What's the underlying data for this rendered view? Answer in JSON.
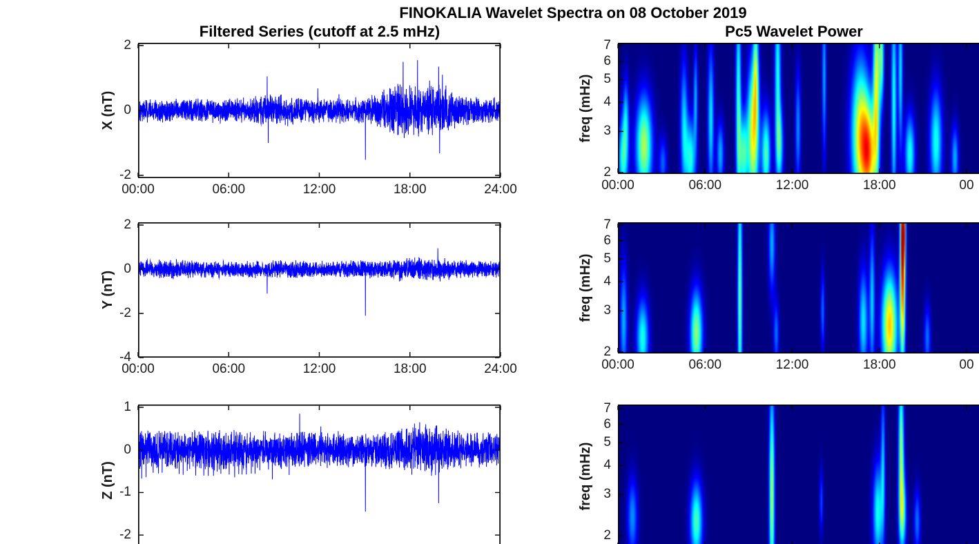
{
  "figure": {
    "title": "FINOKALIA Wavelet Spectra on 08 October 2019",
    "background_color": "#ffffff",
    "axis_color": "#000000",
    "tick_label_color": "#1a1a1a"
  },
  "chart_data": [
    {
      "id": "filtered-series-x",
      "type": "line",
      "title": "Filtered Series (cutoff at 2.5 mHz)",
      "ylabel": "X (nT)",
      "xlabel": "",
      "line_color": "#0000ff",
      "xlim_hours": [
        0,
        24
      ],
      "ylim": [
        -2,
        2
      ],
      "yticks": [
        2,
        0,
        -2
      ],
      "xticks_hours": [
        0,
        6,
        12,
        18,
        24
      ],
      "xtick_labels": [
        "00:00",
        "06:00",
        "12:00",
        "18:00",
        "24:00"
      ],
      "noise": {
        "base_amplitude": 0.42,
        "bumps": [
          {
            "t": 9.0,
            "width": 1.2,
            "amp": 0.1
          },
          {
            "t": 17.0,
            "width": 0.7,
            "amp": 0.25
          },
          {
            "t": 18.6,
            "width": 1.6,
            "amp": 0.38
          },
          {
            "t": 20.2,
            "width": 0.7,
            "amp": 0.25
          }
        ]
      },
      "spikes": [
        [
          8.55,
          1.05
        ],
        [
          8.62,
          -1.0
        ],
        [
          11.9,
          0.68
        ],
        [
          13.3,
          0.5
        ],
        [
          15.05,
          -1.52
        ],
        [
          16.9,
          -0.62
        ],
        [
          17.2,
          0.82
        ],
        [
          17.55,
          1.5
        ],
        [
          17.62,
          -0.85
        ],
        [
          18.5,
          1.55
        ],
        [
          18.57,
          -0.8
        ],
        [
          19.3,
          0.92
        ],
        [
          19.9,
          1.35
        ],
        [
          19.97,
          -1.32
        ],
        [
          20.15,
          1.1
        ]
      ]
    },
    {
      "id": "filtered-series-y",
      "type": "line",
      "title": "",
      "ylabel": "Y (nT)",
      "xlabel": "",
      "line_color": "#0000ff",
      "xlim_hours": [
        0,
        24
      ],
      "ylim": [
        -4,
        2
      ],
      "yticks": [
        2,
        0,
        -2,
        -4
      ],
      "xticks_hours": [
        0,
        6,
        12,
        18,
        24
      ],
      "xtick_labels": [
        "00:00",
        "06:00",
        "12:00",
        "18:00",
        "24:00"
      ],
      "noise": {
        "base_amplitude": 0.42,
        "bumps": [
          {
            "t": 2.0,
            "width": 1.0,
            "amp": 0.05
          },
          {
            "t": 18.8,
            "width": 1.4,
            "amp": 0.18
          }
        ]
      },
      "spikes": [
        [
          8.55,
          -1.1
        ],
        [
          15.05,
          -2.1
        ],
        [
          17.3,
          -0.55
        ],
        [
          18.6,
          0.55
        ],
        [
          19.85,
          0.95
        ],
        [
          20.0,
          -0.55
        ],
        [
          20.3,
          0.5
        ]
      ]
    },
    {
      "id": "filtered-series-z",
      "type": "line",
      "title": "",
      "ylabel": "Z (nT)",
      "xlabel": "",
      "line_color": "#0000ff",
      "xlim_hours": [
        0,
        24
      ],
      "ylim": [
        -2,
        1
      ],
      "yticks": [
        1,
        0,
        -1,
        -2
      ],
      "xticks_hours": [
        0,
        6,
        12,
        18,
        24
      ],
      "xtick_labels": [],
      "noise": {
        "base_amplitude": 0.45,
        "bumps": [
          {
            "t": 3.0,
            "width": 4.0,
            "amp": 0.05
          },
          {
            "t": 18.8,
            "width": 1.2,
            "amp": 0.2
          }
        ]
      },
      "down_spikes": {
        "t_start": 0.2,
        "t_end": 10.5,
        "interval": 0.28,
        "depth_min": 0.25,
        "depth_max": 0.7
      },
      "spikes": [
        [
          10.7,
          0.85
        ],
        [
          12.1,
          0.55
        ],
        [
          15.05,
          -1.45
        ],
        [
          17.8,
          0.5
        ],
        [
          18.3,
          0.62
        ],
        [
          18.65,
          0.65
        ],
        [
          19.05,
          0.6
        ],
        [
          19.9,
          -1.25
        ],
        [
          20.4,
          0.5
        ]
      ]
    },
    {
      "id": "wavelet-power-x",
      "type": "heatmap",
      "title": "Pc5 Wavelet Power",
      "ylabel": "freq (mHz)",
      "xlabel": "",
      "yscale": "log",
      "colormap": "jet",
      "background_color": "#000080",
      "freq_lim_mhz": [
        2,
        7
      ],
      "xlim_hours": [
        0,
        25
      ],
      "yticks": [
        7,
        6,
        5,
        4,
        3,
        2
      ],
      "xticks_hours": [
        0,
        6,
        12,
        18,
        24
      ],
      "xtick_labels": [
        "00:00",
        "06:00",
        "12:00",
        "18:00",
        "00"
      ],
      "blob_fields": [
        "t_hours",
        "freq_mhz",
        "sigma_t_hours",
        "sigma_log10_freq",
        "power"
      ],
      "blobs": [
        [
          0.35,
          2.3,
          0.25,
          0.12,
          0.4
        ],
        [
          0.55,
          3.5,
          0.15,
          0.12,
          0.28
        ],
        [
          1.8,
          2.6,
          0.4,
          0.15,
          0.55
        ],
        [
          3.1,
          2.2,
          0.2,
          0.08,
          0.22
        ],
        [
          4.55,
          3.2,
          0.18,
          0.2,
          0.33
        ],
        [
          5.0,
          2.3,
          0.25,
          0.12,
          0.4
        ],
        [
          5.35,
          4.2,
          0.1,
          0.15,
          0.3
        ],
        [
          6.4,
          3.4,
          0.15,
          0.22,
          0.36
        ],
        [
          7.05,
          2.4,
          0.18,
          0.1,
          0.3
        ],
        [
          8.3,
          3.8,
          0.13,
          0.35,
          0.45
        ],
        [
          8.65,
          2.4,
          0.2,
          0.12,
          0.42
        ],
        [
          9.3,
          2.9,
          0.28,
          0.22,
          0.62
        ],
        [
          9.5,
          5.5,
          0.13,
          0.18,
          0.4
        ],
        [
          10.2,
          2.4,
          0.22,
          0.13,
          0.45
        ],
        [
          11.0,
          5.2,
          0.15,
          0.28,
          0.4
        ],
        [
          11.15,
          2.6,
          0.18,
          0.12,
          0.33
        ],
        [
          12.4,
          3.1,
          0.13,
          0.18,
          0.27
        ],
        [
          14.2,
          5.2,
          0.1,
          0.25,
          0.3
        ],
        [
          16.7,
          2.9,
          0.45,
          0.22,
          0.62
        ],
        [
          17.3,
          2.4,
          0.35,
          0.15,
          0.58
        ],
        [
          17.8,
          4.8,
          0.16,
          0.3,
          0.58
        ],
        [
          18.15,
          6.3,
          0.12,
          0.15,
          0.45
        ],
        [
          19.0,
          4.0,
          0.13,
          0.35,
          0.4
        ],
        [
          19.45,
          5.5,
          0.11,
          0.25,
          0.36
        ],
        [
          20.1,
          2.4,
          0.25,
          0.12,
          0.4
        ],
        [
          21.9,
          2.7,
          0.3,
          0.16,
          0.4
        ],
        [
          23.2,
          2.3,
          0.18,
          0.1,
          0.3
        ]
      ]
    },
    {
      "id": "wavelet-power-y",
      "type": "heatmap",
      "title": "",
      "ylabel": "freq (mHz)",
      "xlabel": "",
      "yscale": "log",
      "colormap": "jet",
      "background_color": "#000080",
      "freq_lim_mhz": [
        2,
        7
      ],
      "xlim_hours": [
        0,
        25
      ],
      "yticks": [
        7,
        6,
        5,
        4,
        3,
        2
      ],
      "xticks_hours": [
        0,
        6,
        12,
        18,
        24
      ],
      "xtick_labels": [
        "00:00",
        "06:00",
        "12:00",
        "18:00",
        "00"
      ],
      "blob_fields": [
        "t_hours",
        "freq_mhz",
        "sigma_t_hours",
        "sigma_log10_freq",
        "power"
      ],
      "blobs": [
        [
          0.4,
          2.7,
          0.18,
          0.18,
          0.3
        ],
        [
          1.7,
          2.3,
          0.3,
          0.12,
          0.4
        ],
        [
          5.4,
          2.4,
          0.3,
          0.13,
          0.52
        ],
        [
          8.4,
          3.4,
          0.11,
          0.42,
          0.5
        ],
        [
          10.6,
          5.8,
          0.16,
          0.15,
          0.3
        ],
        [
          10.9,
          2.4,
          0.13,
          0.1,
          0.24
        ],
        [
          14.1,
          3.0,
          0.1,
          0.12,
          0.24
        ],
        [
          16.9,
          2.7,
          0.22,
          0.16,
          0.36
        ],
        [
          17.5,
          3.3,
          0.13,
          0.22,
          0.33
        ],
        [
          18.7,
          2.6,
          0.38,
          0.16,
          0.68
        ],
        [
          19.6,
          4.8,
          0.13,
          0.3,
          0.85
        ],
        [
          19.65,
          6.6,
          0.09,
          0.1,
          0.5
        ],
        [
          21.3,
          2.3,
          0.16,
          0.1,
          0.24
        ]
      ]
    },
    {
      "id": "wavelet-power-z",
      "type": "heatmap",
      "title": "",
      "ylabel": "freq (mHz)",
      "xlabel": "",
      "yscale": "log",
      "colormap": "jet",
      "background_color": "#000080",
      "freq_lim_mhz": [
        2,
        7
      ],
      "xlim_hours": [
        0,
        25
      ],
      "yticks": [
        7,
        6,
        5,
        4,
        3,
        2
      ],
      "xticks_hours": [
        0,
        6,
        12,
        18,
        24
      ],
      "xtick_labels": [],
      "blob_fields": [
        "t_hours",
        "freq_mhz",
        "sigma_t_hours",
        "sigma_log10_freq",
        "power"
      ],
      "blobs": [
        [
          1.0,
          2.4,
          0.25,
          0.12,
          0.27
        ],
        [
          5.4,
          2.3,
          0.3,
          0.12,
          0.45
        ],
        [
          10.6,
          3.0,
          0.13,
          0.33,
          0.55
        ],
        [
          14.0,
          2.8,
          0.09,
          0.1,
          0.2
        ],
        [
          17.9,
          2.5,
          0.25,
          0.15,
          0.4
        ],
        [
          18.25,
          4.2,
          0.1,
          0.22,
          0.3
        ],
        [
          19.5,
          4.8,
          0.13,
          0.22,
          0.52
        ],
        [
          19.6,
          2.5,
          0.18,
          0.12,
          0.42
        ],
        [
          20.6,
          2.3,
          0.16,
          0.1,
          0.24
        ]
      ]
    }
  ]
}
